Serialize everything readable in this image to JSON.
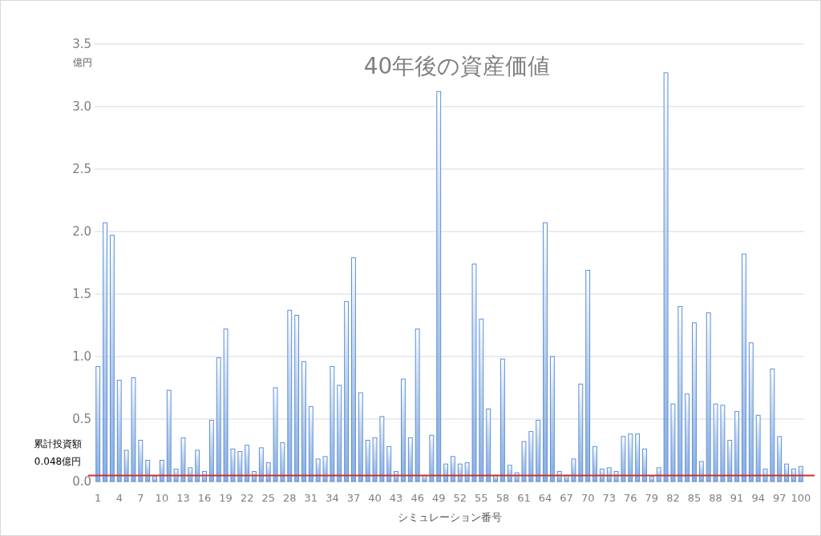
{
  "chart_data": {
    "type": "bar",
    "title": "40年後の資産価値",
    "xlabel": "シミュレーション番号",
    "ylabel": "億円",
    "categories": [
      "1",
      null,
      null,
      "4",
      null,
      null,
      "7",
      null,
      null,
      "10",
      null,
      null,
      "13",
      null,
      null,
      "16",
      null,
      null,
      "19",
      null,
      null,
      "22",
      null,
      null,
      "25",
      null,
      null,
      "28",
      null,
      null,
      "31",
      null,
      null,
      "34",
      null,
      null,
      "37",
      null,
      null,
      "40",
      null,
      null,
      "43",
      null,
      null,
      "46",
      null,
      null,
      "49",
      null,
      null,
      "52",
      null,
      null,
      "55",
      null,
      null,
      "58",
      null,
      null,
      "61",
      null,
      null,
      "64",
      null,
      null,
      "67",
      null,
      null,
      "70",
      null,
      null,
      "73",
      null,
      null,
      "76",
      null,
      null,
      "79",
      null,
      null,
      "82",
      null,
      null,
      "85",
      null,
      null,
      "88",
      null,
      null,
      "91",
      null,
      null,
      "94",
      null,
      null,
      "97",
      null,
      null,
      "100"
    ],
    "values": [
      0.92,
      2.07,
      1.97,
      0.81,
      0.25,
      0.83,
      0.33,
      0.17,
      0.04,
      0.17,
      0.73,
      0.1,
      0.35,
      0.11,
      0.25,
      0.08,
      0.49,
      0.99,
      1.22,
      0.26,
      0.24,
      0.29,
      0.08,
      0.27,
      0.15,
      0.75,
      0.31,
      1.37,
      1.33,
      0.96,
      0.6,
      0.18,
      0.2,
      0.92,
      0.77,
      1.44,
      1.79,
      0.71,
      0.33,
      0.35,
      0.52,
      0.28,
      0.08,
      0.82,
      0.35,
      1.22,
      0.05,
      0.37,
      3.12,
      0.14,
      0.2,
      0.14,
      0.15,
      1.74,
      1.3,
      0.58,
      0.05,
      0.98,
      0.13,
      0.07,
      0.32,
      0.4,
      0.49,
      2.07,
      1.0,
      0.08,
      0.05,
      0.18,
      0.78,
      1.69,
      0.28,
      0.1,
      0.11,
      0.08,
      0.36,
      0.38,
      0.38,
      0.26,
      0.04,
      0.11,
      3.27,
      0.62,
      1.4,
      0.7,
      1.27,
      0.16,
      1.35,
      0.62,
      0.61,
      0.33,
      0.56,
      1.82,
      1.11,
      0.53,
      0.1,
      0.9,
      0.36,
      0.14,
      0.1,
      0.12
    ],
    "color": "#5b8fd6",
    "ylim": [
      0,
      3.5
    ],
    "yticks": [
      {
        "value": 0,
        "label": "0.0"
      },
      {
        "value": 0.5,
        "label": "0.5"
      },
      {
        "value": 1,
        "label": "1.0"
      },
      {
        "value": 1.5,
        "label": "1.5"
      },
      {
        "value": 2,
        "label": "2.0"
      },
      {
        "value": 2.5,
        "label": "2.5"
      },
      {
        "value": 3,
        "label": "3.0"
      },
      {
        "value": 3.5,
        "label": "3.5"
      }
    ],
    "grid": "y",
    "ref_lines": [
      {
        "axis": "y",
        "value": 0.048,
        "label": "累計投資額\n0.048億円",
        "color": "#d03030"
      }
    ]
  }
}
